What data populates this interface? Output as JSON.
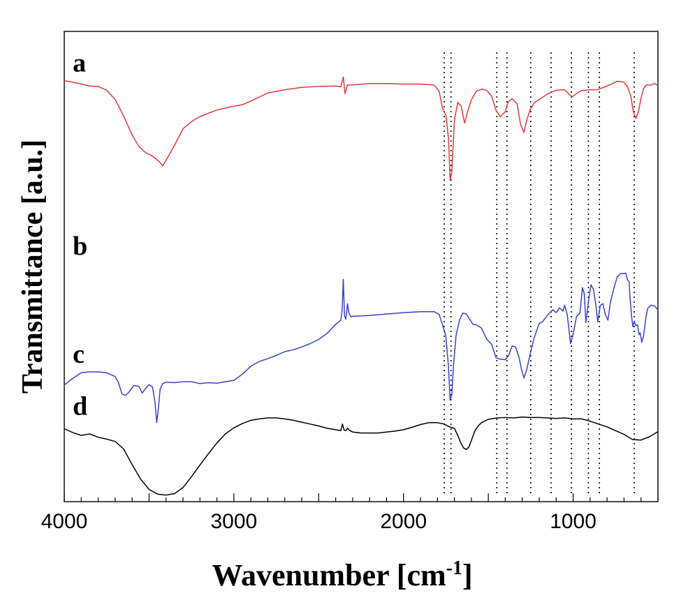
{
  "chart_data": {
    "type": "line",
    "title": "",
    "xlabel": "Wavenumber [cm",
    "xlabel_sup": "-1",
    "xlabel_close": "]",
    "ylabel": "Transmittance [a.u.]",
    "xlim": [
      4000,
      500
    ],
    "ylim": [
      0,
      100
    ],
    "x_ticks": [
      {
        "value": 4000,
        "label": "4000"
      },
      {
        "value": 3000,
        "label": "3000"
      },
      {
        "value": 2000,
        "label": "2000"
      },
      {
        "value": 1000,
        "label": "1000"
      }
    ],
    "reference_lines": [
      1760,
      1720,
      1450,
      1390,
      1250,
      1130,
      1010,
      910,
      845,
      640
    ],
    "series": [
      {
        "name": "a",
        "label": "a",
        "color": "#e03a3a",
        "label_at": [
          3950,
          91.5
        ],
        "points": [
          [
            4000,
            89.5
          ],
          [
            3950,
            89.2
          ],
          [
            3900,
            88.8
          ],
          [
            3850,
            88.4
          ],
          [
            3800,
            88.3
          ],
          [
            3750,
            87.5
          ],
          [
            3700,
            85.5
          ],
          [
            3650,
            82
          ],
          [
            3600,
            78
          ],
          [
            3560,
            75.5
          ],
          [
            3520,
            74.2
          ],
          [
            3480,
            73.5
          ],
          [
            3440,
            72.3
          ],
          [
            3420,
            71.4
          ],
          [
            3400,
            72.6
          ],
          [
            3350,
            75.8
          ],
          [
            3300,
            79.3
          ],
          [
            3250,
            80.8
          ],
          [
            3200,
            81.9
          ],
          [
            3100,
            83.3
          ],
          [
            3000,
            84.1
          ],
          [
            2950,
            84.4
          ],
          [
            2900,
            85.2
          ],
          [
            2800,
            86.9
          ],
          [
            2700,
            87.6
          ],
          [
            2600,
            88.1
          ],
          [
            2500,
            88.3
          ],
          [
            2400,
            88.4
          ],
          [
            2370,
            88.2
          ],
          [
            2355,
            90.3
          ],
          [
            2345,
            86.8
          ],
          [
            2330,
            88.6
          ],
          [
            2300,
            88.6
          ],
          [
            2200,
            88.9
          ],
          [
            2100,
            88.9
          ],
          [
            2000,
            88.8
          ],
          [
            1900,
            88.8
          ],
          [
            1820,
            88.6
          ],
          [
            1790,
            87.3
          ],
          [
            1770,
            83.6
          ],
          [
            1750,
            82.2
          ],
          [
            1735,
            77.3
          ],
          [
            1725,
            68.3
          ],
          [
            1715,
            70.2
          ],
          [
            1700,
            81.2
          ],
          [
            1680,
            84.9
          ],
          [
            1660,
            84.1
          ],
          [
            1640,
            80.5
          ],
          [
            1620,
            83.2
          ],
          [
            1600,
            85.5
          ],
          [
            1570,
            87.3
          ],
          [
            1540,
            87.7
          ],
          [
            1510,
            87.5
          ],
          [
            1480,
            86.2
          ],
          [
            1455,
            83.2
          ],
          [
            1430,
            81.9
          ],
          [
            1400,
            82.9
          ],
          [
            1385,
            84.9
          ],
          [
            1360,
            85.7
          ],
          [
            1330,
            84.6
          ],
          [
            1310,
            80.2
          ],
          [
            1290,
            78.5
          ],
          [
            1275,
            80.9
          ],
          [
            1255,
            83.2
          ],
          [
            1230,
            84.8
          ],
          [
            1200,
            85.5
          ],
          [
            1150,
            86.7
          ],
          [
            1100,
            87.5
          ],
          [
            1050,
            87.6
          ],
          [
            1020,
            86.5
          ],
          [
            1005,
            86.1
          ],
          [
            980,
            86.8
          ],
          [
            950,
            87.4
          ],
          [
            900,
            87.6
          ],
          [
            860,
            87.6
          ],
          [
            820,
            88.1
          ],
          [
            780,
            88.7
          ],
          [
            740,
            89.4
          ],
          [
            700,
            89.2
          ],
          [
            680,
            88.2
          ],
          [
            660,
            86.2
          ],
          [
            645,
            82.9
          ],
          [
            630,
            81.5
          ],
          [
            615,
            82.9
          ],
          [
            600,
            85.8
          ],
          [
            585,
            87.8
          ],
          [
            570,
            88.6
          ],
          [
            540,
            88.6
          ],
          [
            520,
            88.9
          ],
          [
            500,
            88.5
          ]
        ]
      },
      {
        "name": "b",
        "label": "b",
        "color": "#3a42c8",
        "label_at": [
          3950,
          52.5
        ],
        "points": [
          [
            4000,
            24.8
          ],
          [
            3950,
            26.2
          ],
          [
            3900,
            27.4
          ],
          [
            3850,
            27.6
          ],
          [
            3800,
            27.6
          ],
          [
            3750,
            27.4
          ],
          [
            3700,
            26.6
          ],
          [
            3680,
            25.3
          ],
          [
            3660,
            22.9
          ],
          [
            3640,
            22.6
          ],
          [
            3620,
            23.2
          ],
          [
            3590,
            24.7
          ],
          [
            3560,
            24.5
          ],
          [
            3540,
            23.1
          ],
          [
            3520,
            24.1
          ],
          [
            3500,
            24.9
          ],
          [
            3480,
            24.4
          ],
          [
            3465,
            21.1
          ],
          [
            3455,
            16.8
          ],
          [
            3445,
            19.9
          ],
          [
            3435,
            23.9
          ],
          [
            3420,
            25.1
          ],
          [
            3400,
            25.4
          ],
          [
            3350,
            25.3
          ],
          [
            3300,
            25.5
          ],
          [
            3250,
            25.5
          ],
          [
            3200,
            25.1
          ],
          [
            3150,
            25.3
          ],
          [
            3100,
            25.2
          ],
          [
            3050,
            25.5
          ],
          [
            3000,
            25.8
          ],
          [
            2950,
            27.1
          ],
          [
            2900,
            28.8
          ],
          [
            2850,
            29.8
          ],
          [
            2800,
            30.4
          ],
          [
            2750,
            31.1
          ],
          [
            2700,
            31.9
          ],
          [
            2650,
            32.3
          ],
          [
            2600,
            32.9
          ],
          [
            2550,
            33.6
          ],
          [
            2500,
            34.5
          ],
          [
            2450,
            35.8
          ],
          [
            2400,
            37.7
          ],
          [
            2370,
            38.6
          ],
          [
            2362,
            40.6
          ],
          [
            2355,
            47.3
          ],
          [
            2348,
            39.6
          ],
          [
            2340,
            38.8
          ],
          [
            2330,
            42.1
          ],
          [
            2322,
            40.1
          ],
          [
            2310,
            39.3
          ],
          [
            2300,
            39.4
          ],
          [
            2200,
            39.6
          ],
          [
            2100,
            39.9
          ],
          [
            2000,
            40.2
          ],
          [
            1900,
            40.4
          ],
          [
            1820,
            40.4
          ],
          [
            1790,
            39.8
          ],
          [
            1770,
            37.6
          ],
          [
            1750,
            35.2
          ],
          [
            1735,
            28.6
          ],
          [
            1725,
            21.6
          ],
          [
            1715,
            22.8
          ],
          [
            1705,
            29.2
          ],
          [
            1690,
            35.4
          ],
          [
            1670,
            38.6
          ],
          [
            1650,
            40.1
          ],
          [
            1630,
            39.9
          ],
          [
            1610,
            38.8
          ],
          [
            1590,
            37.7
          ],
          [
            1570,
            37.6
          ],
          [
            1540,
            36.9
          ],
          [
            1510,
            34.6
          ],
          [
            1480,
            33.4
          ],
          [
            1455,
            30.6
          ],
          [
            1430,
            30.3
          ],
          [
            1400,
            30.2
          ],
          [
            1380,
            31.1
          ],
          [
            1360,
            33.1
          ],
          [
            1340,
            32.9
          ],
          [
            1320,
            30.8
          ],
          [
            1305,
            28.2
          ],
          [
            1290,
            26.3
          ],
          [
            1275,
            27.9
          ],
          [
            1255,
            31.1
          ],
          [
            1230,
            34.8
          ],
          [
            1200,
            37.9
          ],
          [
            1180,
            38.3
          ],
          [
            1150,
            39.7
          ],
          [
            1120,
            40.8
          ],
          [
            1100,
            40.2
          ],
          [
            1080,
            41.2
          ],
          [
            1060,
            40.5
          ],
          [
            1050,
            41.8
          ],
          [
            1035,
            39.8
          ],
          [
            1015,
            33.6
          ],
          [
            1000,
            35.6
          ],
          [
            980,
            39.4
          ],
          [
            960,
            40.1
          ],
          [
            945,
            45.5
          ],
          [
            935,
            44.3
          ],
          [
            925,
            38.1
          ],
          [
            910,
            42.4
          ],
          [
            895,
            46.1
          ],
          [
            880,
            45.1
          ],
          [
            865,
            41.5
          ],
          [
            855,
            38.2
          ],
          [
            840,
            41.7
          ],
          [
            825,
            42.1
          ],
          [
            810,
            39.8
          ],
          [
            795,
            38.6
          ],
          [
            780,
            42.4
          ],
          [
            760,
            45.4
          ],
          [
            740,
            47.8
          ],
          [
            720,
            48.5
          ],
          [
            700,
            48.5
          ],
          [
            690,
            48.6
          ],
          [
            680,
            47.2
          ],
          [
            670,
            46.8
          ],
          [
            665,
            43.6
          ],
          [
            655,
            39.2
          ],
          [
            648,
            37.2
          ],
          [
            640,
            38.4
          ],
          [
            630,
            37.4
          ],
          [
            620,
            37.6
          ],
          [
            612,
            35.5
          ],
          [
            605,
            35.9
          ],
          [
            595,
            33.9
          ],
          [
            585,
            35.3
          ],
          [
            570,
            39.4
          ],
          [
            560,
            41.1
          ],
          [
            540,
            41.8
          ],
          [
            520,
            41.6
          ],
          [
            500,
            40.8
          ]
        ]
      },
      {
        "name": "c",
        "label": "c",
        "color": "#000000",
        "label_at": [
          3950,
          29.5
        ],
        "points": [
          [
            4000,
            15.5
          ],
          [
            3950,
            14.7
          ],
          [
            3900,
            14.1
          ],
          [
            3850,
            14.4
          ],
          [
            3800,
            13.7
          ],
          [
            3750,
            13.3
          ],
          [
            3700,
            12.8
          ],
          [
            3650,
            11.2
          ],
          [
            3600,
            7.9
          ],
          [
            3550,
            4.8
          ],
          [
            3500,
            2.6
          ],
          [
            3450,
            1.6
          ],
          [
            3400,
            1.4
          ],
          [
            3350,
            1.7
          ],
          [
            3300,
            3.0
          ],
          [
            3250,
            5.3
          ],
          [
            3200,
            7.8
          ],
          [
            3150,
            10.2
          ],
          [
            3100,
            12.5
          ],
          [
            3050,
            14.4
          ],
          [
            3000,
            15.7
          ],
          [
            2950,
            16.6
          ],
          [
            2900,
            17.3
          ],
          [
            2850,
            17.6
          ],
          [
            2800,
            17.8
          ],
          [
            2750,
            17.8
          ],
          [
            2700,
            17.6
          ],
          [
            2650,
            17.3
          ],
          [
            2600,
            16.9
          ],
          [
            2550,
            16.5
          ],
          [
            2500,
            16.1
          ],
          [
            2450,
            15.6
          ],
          [
            2400,
            15.3
          ],
          [
            2370,
            15.1
          ],
          [
            2360,
            16.5
          ],
          [
            2350,
            15.2
          ],
          [
            2340,
            15.1
          ],
          [
            2330,
            15.6
          ],
          [
            2320,
            15.2
          ],
          [
            2300,
            14.8
          ],
          [
            2250,
            14.6
          ],
          [
            2200,
            14.6
          ],
          [
            2150,
            14.6
          ],
          [
            2100,
            14.8
          ],
          [
            2050,
            15.0
          ],
          [
            2000,
            15.3
          ],
          [
            1950,
            15.8
          ],
          [
            1900,
            16.4
          ],
          [
            1850,
            16.8
          ],
          [
            1800,
            16.8
          ],
          [
            1760,
            16.5
          ],
          [
            1740,
            16.1
          ],
          [
            1720,
            15.8
          ],
          [
            1700,
            15.6
          ],
          [
            1680,
            14.1
          ],
          [
            1660,
            12.3
          ],
          [
            1645,
            11.4
          ],
          [
            1630,
            11.1
          ],
          [
            1615,
            11.6
          ],
          [
            1600,
            13.0
          ],
          [
            1580,
            15.0
          ],
          [
            1560,
            16.1
          ],
          [
            1540,
            16.8
          ],
          [
            1500,
            17.5
          ],
          [
            1450,
            17.8
          ],
          [
            1400,
            17.9
          ],
          [
            1350,
            17.8
          ],
          [
            1300,
            18.0
          ],
          [
            1250,
            17.9
          ],
          [
            1200,
            17.9
          ],
          [
            1150,
            17.8
          ],
          [
            1100,
            17.7
          ],
          [
            1050,
            17.8
          ],
          [
            1000,
            17.6
          ],
          [
            950,
            17.6
          ],
          [
            900,
            17.1
          ],
          [
            850,
            16.5
          ],
          [
            800,
            15.9
          ],
          [
            750,
            15.1
          ],
          [
            700,
            14.3
          ],
          [
            650,
            13.2
          ],
          [
            600,
            13.1
          ],
          [
            550,
            13.8
          ],
          [
            500,
            14.9
          ]
        ]
      },
      {
        "name": "d",
        "label": "d",
        "color": "#000000",
        "label_at": [
          3950,
          18.5
        ],
        "points": []
      }
    ]
  }
}
